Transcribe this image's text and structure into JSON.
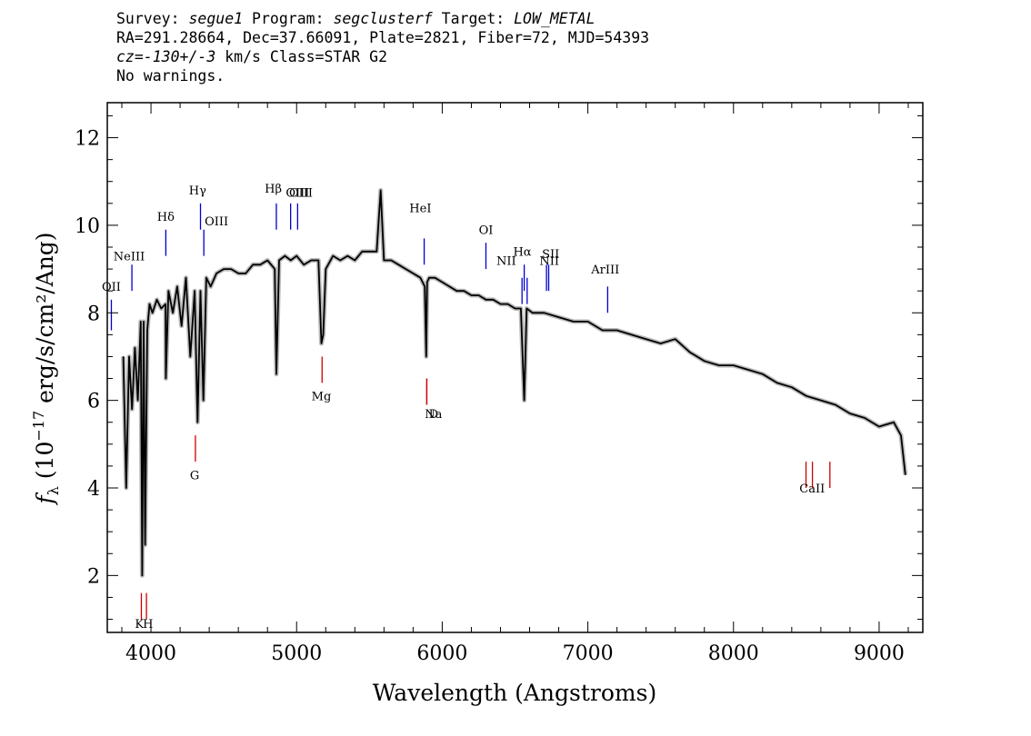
{
  "header": {
    "line1": {
      "survey_label": "Survey: ",
      "survey": "segue1",
      "program_label": " Program: ",
      "program": "segclusterf",
      "target_label": " Target: ",
      "target": "LOW_METAL"
    },
    "line2": "RA=291.28664, Dec=37.66091, Plate=2821, Fiber=72, MJD=54393",
    "line3": {
      "cz": "cz=-130+/-3",
      "rest": " km/s Class=STAR G2"
    },
    "line4": "No warnings."
  },
  "chart_data": {
    "type": "line",
    "title": "",
    "xlabel": "Wavelength (Angstroms)",
    "ylabel_prefix": "f",
    "ylabel_sub": "λ",
    "ylabel_mid": " (10",
    "ylabel_exp": "−17",
    "ylabel_suffix": " erg/s/cm²/Ang)",
    "xlim": [
      3700,
      9300
    ],
    "ylim": [
      0.7,
      12.8
    ],
    "xticks": [
      4000,
      5000,
      6000,
      7000,
      8000,
      9000
    ],
    "yticks": [
      2,
      4,
      6,
      8,
      10,
      12
    ],
    "grid": false,
    "series": [
      {
        "color": "#000000",
        "error_color": "#bbbbbb",
        "x": [
          3810,
          3830,
          3850,
          3870,
          3890,
          3910,
          3930,
          3940,
          3950,
          3960,
          3975,
          3990,
          4010,
          4040,
          4070,
          4100,
          4102,
          4120,
          4150,
          4180,
          4210,
          4240,
          4270,
          4300,
          4320,
          4340,
          4360,
          4380,
          4410,
          4450,
          4500,
          4550,
          4600,
          4650,
          4700,
          4750,
          4800,
          4850,
          4861,
          4880,
          4920,
          4960,
          5000,
          5050,
          5100,
          5150,
          5170,
          5183,
          5200,
          5250,
          5300,
          5350,
          5400,
          5450,
          5500,
          5550,
          5577,
          5600,
          5650,
          5700,
          5750,
          5800,
          5850,
          5880,
          5890,
          5896,
          5910,
          5950,
          6000,
          6050,
          6100,
          6150,
          6200,
          6250,
          6300,
          6350,
          6400,
          6450,
          6500,
          6540,
          6563,
          6580,
          6620,
          6700,
          6800,
          6900,
          7000,
          7100,
          7200,
          7300,
          7400,
          7500,
          7600,
          7700,
          7800,
          7900,
          8000,
          8100,
          8200,
          8300,
          8400,
          8500,
          8600,
          8700,
          8800,
          8900,
          9000,
          9100,
          9150,
          9180
        ],
        "y": [
          7.0,
          4.0,
          7.0,
          5.8,
          7.2,
          6.0,
          7.8,
          2.0,
          7.8,
          2.7,
          7.6,
          8.2,
          8.0,
          8.3,
          8.1,
          8.2,
          6.5,
          8.5,
          8.0,
          8.6,
          7.7,
          8.8,
          7.0,
          8.5,
          5.5,
          8.5,
          6.0,
          8.8,
          8.6,
          8.9,
          9.0,
          9.0,
          8.9,
          8.9,
          9.1,
          9.1,
          9.2,
          9.0,
          6.6,
          9.2,
          9.3,
          9.2,
          9.3,
          9.1,
          9.2,
          9.2,
          7.3,
          7.5,
          9.0,
          9.3,
          9.2,
          9.3,
          9.2,
          9.4,
          9.4,
          9.4,
          10.8,
          9.2,
          9.2,
          9.1,
          9.0,
          8.9,
          8.8,
          8.6,
          7.0,
          8.7,
          8.8,
          8.8,
          8.7,
          8.6,
          8.5,
          8.5,
          8.4,
          8.4,
          8.3,
          8.3,
          8.2,
          8.2,
          8.1,
          8.1,
          6.0,
          8.1,
          8.0,
          8.0,
          7.9,
          7.8,
          7.8,
          7.6,
          7.6,
          7.5,
          7.4,
          7.3,
          7.4,
          7.1,
          6.9,
          6.8,
          6.8,
          6.7,
          6.6,
          6.4,
          6.3,
          6.1,
          6.0,
          5.9,
          5.7,
          5.6,
          5.4,
          5.5,
          5.2,
          4.3
        ]
      }
    ],
    "lines": [
      {
        "label": "OII",
        "x": 3728,
        "y0": 7.6,
        "y1": 8.3,
        "color": "#0000cc",
        "tx": 3728,
        "ty": 8.5
      },
      {
        "label": "NeIII",
        "x": 3869,
        "y0": 8.5,
        "y1": 9.1,
        "color": "#0000cc",
        "tx": 3850,
        "ty": 9.2
      },
      {
        "label": "Hδ",
        "x": 4102,
        "y0": 9.3,
        "y1": 9.9,
        "color": "#0000cc",
        "tx": 4102,
        "ty": 10.1
      },
      {
        "label": "Hγ",
        "x": 4340,
        "y0": 9.9,
        "y1": 10.5,
        "color": "#0000cc",
        "tx": 4320,
        "ty": 10.7
      },
      {
        "label": "OIII",
        "x": 4363,
        "y0": 9.3,
        "y1": 9.9,
        "color": "#0000cc",
        "tx": 4450,
        "ty": 10.0
      },
      {
        "label": "Hβ",
        "x": 4861,
        "y0": 9.9,
        "y1": 10.5,
        "color": "#0000cc",
        "tx": 4840,
        "ty": 10.75
      },
      {
        "label": "OIII",
        "x": 4959,
        "y0": 9.9,
        "y1": 10.5,
        "color": "#0000cc",
        "tx": 5030,
        "ty": 10.65
      },
      {
        "label": "OIII",
        "x": 5007,
        "y0": 9.9,
        "y1": 10.5,
        "color": "#0000cc",
        "tx": 5007,
        "ty": 10.65
      },
      {
        "label": "HeI",
        "x": 5876,
        "y0": 9.1,
        "y1": 9.7,
        "color": "#0000cc",
        "tx": 5850,
        "ty": 10.3
      },
      {
        "label": "OI",
        "x": 6300,
        "y0": 9.0,
        "y1": 9.6,
        "color": "#0000cc",
        "tx": 6300,
        "ty": 9.8
      },
      {
        "label": "NII",
        "x": 6548,
        "y0": 8.2,
        "y1": 8.8,
        "color": "#0000cc",
        "tx": 6440,
        "ty": 9.1
      },
      {
        "label": "Hα",
        "x": 6563,
        "y0": 8.5,
        "y1": 9.1,
        "color": "#0000cc",
        "tx": 6550,
        "ty": 9.3
      },
      {
        "label": "NII",
        "x": 6583,
        "y0": 8.2,
        "y1": 8.8,
        "color": "#0000cc",
        "tx": 6735,
        "ty": 9.1
      },
      {
        "label": "SII",
        "x": 6716,
        "y0": 8.5,
        "y1": 9.1,
        "color": "#0000cc",
        "tx": 6745,
        "ty": 9.25
      },
      {
        "label": "SII",
        "x": 6731,
        "y0": 8.5,
        "y1": 9.1,
        "color": "#0000cc",
        "tx": 6745,
        "ty": 9.25
      },
      {
        "label": "ArIII",
        "x": 7136,
        "y0": 8.0,
        "y1": 8.6,
        "color": "#0000cc",
        "tx": 7120,
        "ty": 8.9
      },
      {
        "label": "K",
        "x": 3934,
        "y0": 1.0,
        "y1": 1.6,
        "color": "#cc0000",
        "tx": 3920,
        "ty": 0.8
      },
      {
        "label": "H",
        "x": 3969,
        "y0": 1.0,
        "y1": 1.6,
        "color": "#cc0000",
        "tx": 3980,
        "ty": 0.8
      },
      {
        "label": "G",
        "x": 4305,
        "y0": 4.6,
        "y1": 5.2,
        "color": "#cc0000",
        "tx": 4300,
        "ty": 4.2
      },
      {
        "label": "Mg",
        "x": 5175,
        "y0": 6.4,
        "y1": 7.0,
        "color": "#cc0000",
        "tx": 5170,
        "ty": 6.0
      },
      {
        "label": "Na",
        "x": 5894,
        "y0": 5.9,
        "y1": 6.5,
        "color": "#cc0000",
        "tx": 5940,
        "ty": 5.6
      },
      {
        "label": "D",
        "x": 5894,
        "y0": 5.9,
        "y1": 6.5,
        "color": "#cc0000",
        "tx": 5940,
        "ty": 5.6
      },
      {
        "label": "CaII",
        "x": 8498,
        "y0": 4.0,
        "y1": 4.6,
        "color": "#cc0000",
        "tx": 8540,
        "ty": 3.9
      },
      {
        "label": "CaII",
        "x": 8542,
        "y0": 4.0,
        "y1": 4.6,
        "color": "#cc0000",
        "tx": 8540,
        "ty": 3.9
      },
      {
        "label": "CaII",
        "x": 8662,
        "y0": 4.0,
        "y1": 4.6,
        "color": "#cc0000",
        "tx": 8540,
        "ty": 3.9
      }
    ]
  }
}
